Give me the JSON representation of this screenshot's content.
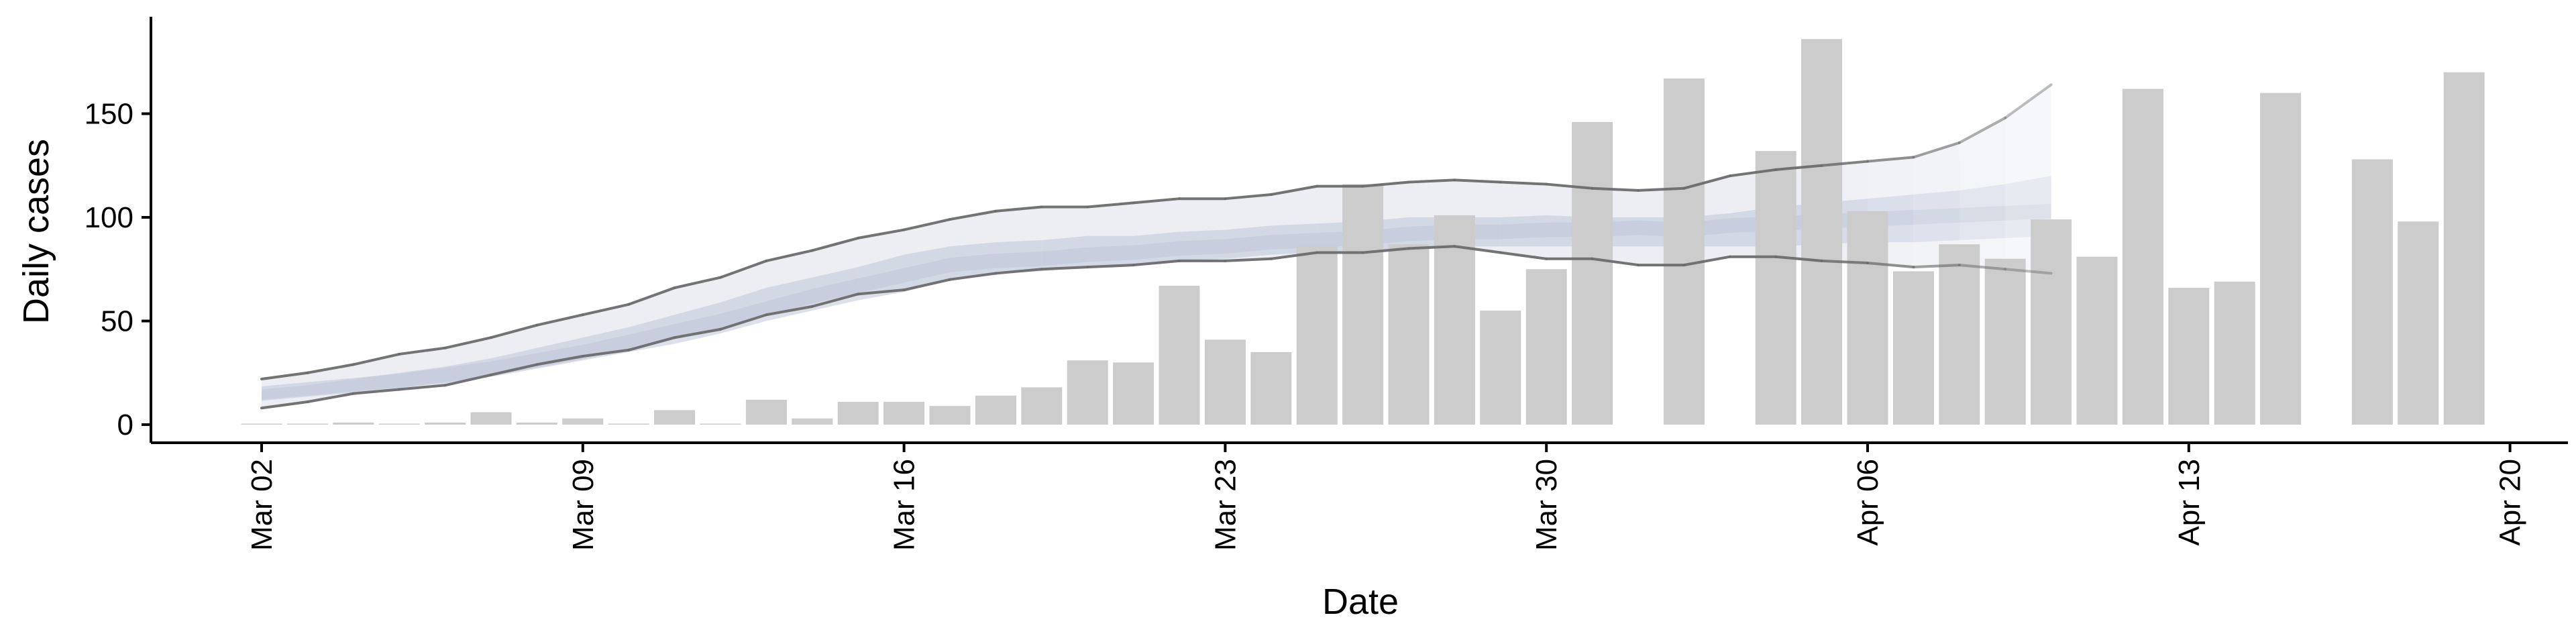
{
  "chart_data": {
    "type": "bar",
    "title": "",
    "xlabel": "Date",
    "ylabel": "Daily cases",
    "ylim": [
      -8,
      195
    ],
    "yticks": [
      0,
      50,
      100,
      150
    ],
    "xticks": [
      "Mar 02",
      "Mar 09",
      "Mar 16",
      "Mar 23",
      "Mar 30",
      "Apr 06",
      "Apr 13",
      "Apr 20"
    ],
    "x_start_date": "Mar 02",
    "bar_color": "#cccccc",
    "band_color": "#bfc6d9",
    "line_color": "#6b6b6b",
    "series": [
      {
        "type": "bar",
        "values": [
          0,
          0,
          1,
          0,
          1,
          6,
          1,
          3,
          0,
          7,
          0,
          12,
          3,
          11,
          11,
          9,
          14,
          18,
          31,
          30,
          67,
          41,
          35,
          86,
          116,
          87,
          101,
          55,
          75,
          146,
          null,
          167,
          null,
          132,
          186,
          103,
          74,
          87,
          80,
          99,
          81,
          162,
          66,
          69,
          160,
          null,
          128,
          98,
          170
        ]
      },
      {
        "type": "band",
        "upper": [
          22,
          25,
          29,
          34,
          37,
          42,
          48,
          53,
          58,
          66,
          71,
          79,
          84,
          90,
          94,
          99,
          103,
          105,
          105,
          107,
          109,
          109,
          111,
          115,
          115,
          117,
          118,
          117,
          116,
          114,
          113,
          114,
          120,
          123,
          125,
          127,
          129,
          136,
          148,
          164
        ],
        "q75": [
          17,
          19,
          22,
          25,
          28,
          32,
          37,
          42,
          47,
          53,
          59,
          66,
          71,
          76,
          82,
          86,
          88,
          89,
          91,
          91,
          93,
          94,
          96,
          97,
          98,
          100,
          100,
          100,
          101,
          100,
          100,
          100,
          102,
          105,
          107,
          109,
          111,
          113,
          116,
          120
        ],
        "median": [
          15,
          17,
          19,
          21,
          24,
          27,
          31,
          35,
          40,
          45,
          50,
          56,
          62,
          67,
          72,
          77,
          79,
          80,
          82,
          83,
          85,
          86,
          88,
          89,
          90,
          92,
          93,
          93,
          94,
          94,
          95,
          94,
          96,
          97,
          98,
          99,
          100,
          101,
          102,
          103
        ],
        "q25": [
          12,
          14,
          16,
          18,
          20,
          23,
          27,
          31,
          35,
          39,
          44,
          50,
          55,
          60,
          64,
          70,
          73,
          74,
          76,
          77,
          79,
          80,
          82,
          83,
          83,
          85,
          86,
          86,
          86,
          86,
          86,
          86,
          86,
          86,
          87,
          88,
          88,
          89,
          90,
          91
        ],
        "lower": [
          8,
          11,
          15,
          17,
          19,
          24,
          29,
          33,
          36,
          42,
          46,
          53,
          57,
          63,
          65,
          70,
          73,
          75,
          76,
          77,
          79,
          79,
          80,
          83,
          83,
          85,
          86,
          83,
          80,
          80,
          77,
          77,
          81,
          81,
          79,
          78,
          76,
          77,
          75,
          73
        ]
      }
    ]
  }
}
